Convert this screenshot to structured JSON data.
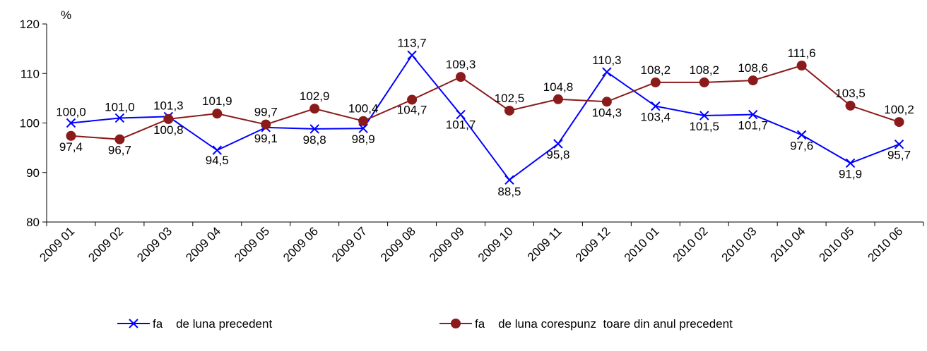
{
  "chart_data": {
    "type": "line",
    "ylabel": "%",
    "ylim": [
      80,
      120
    ],
    "yticks": [
      80,
      90,
      100,
      110,
      120
    ],
    "categories": [
      "2009 01",
      "2009 02",
      "2009 03",
      "2009 04",
      "2009 05",
      "2009 06",
      "2009 07",
      "2009 08",
      "2009 09",
      "2009 10",
      "2009 11",
      "2009 12",
      "2010 01",
      "2010 02",
      "2010 03",
      "2010 04",
      "2010 05",
      "2010 06"
    ],
    "grid": false,
    "legend_position": "bottom",
    "series": [
      {
        "name": "fa de luna precedent",
        "legend_text": "fa    de luna precedent",
        "color": "#0000FF",
        "marker": "x",
        "values": [
          100.0,
          101.0,
          101.3,
          94.5,
          99.1,
          98.8,
          98.9,
          113.7,
          101.7,
          88.5,
          95.8,
          110.3,
          103.4,
          101.5,
          101.7,
          97.6,
          91.9,
          95.7
        ],
        "labels": [
          "100,0",
          "101,0",
          "101,3",
          "94,5",
          "99,1",
          "98,8",
          "98,9",
          "113,7",
          "101,7",
          "88,5",
          "95,8",
          "110,3",
          "103,4",
          "101,5",
          "101,7",
          "97,6",
          "91,9",
          "95,7"
        ]
      },
      {
        "name": "fa de luna corespunz toare din anul precedent",
        "legend_text": "fa    de luna corespunz  toare din anul precedent",
        "color": "#8B1A1A",
        "marker": "circle",
        "values": [
          97.4,
          96.7,
          100.8,
          101.9,
          99.7,
          102.9,
          100.4,
          104.7,
          109.3,
          102.5,
          104.8,
          104.3,
          108.2,
          108.2,
          108.6,
          111.6,
          103.5,
          100.2
        ],
        "labels": [
          "97,4",
          "96,7",
          "100,8",
          "101,9",
          "99,7",
          "102,9",
          "100,4",
          "104,7",
          "109,3",
          "102,5",
          "104,8",
          "104,3",
          "108,2",
          "108,2",
          "108,6",
          "111,6",
          "103,5",
          "100,2"
        ]
      }
    ]
  }
}
